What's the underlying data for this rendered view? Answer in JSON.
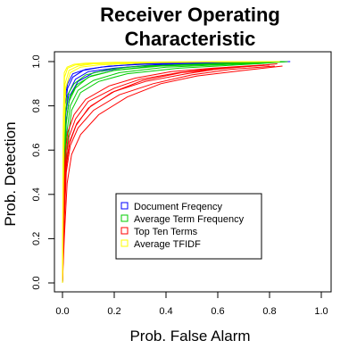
{
  "chart_data": {
    "type": "line",
    "title_lines": [
      "Receiver Operating",
      "Characteristic"
    ],
    "xlabel": "Prob. False Alarm",
    "ylabel": "Prob. Detection",
    "xlim": [
      0,
      1
    ],
    "ylim": [
      0,
      1
    ],
    "x_ticks": [
      0.0,
      0.2,
      0.4,
      0.6,
      0.8,
      1.0
    ],
    "x_tick_labels": [
      "0.0",
      "0.2",
      "0.4",
      "0.6",
      "0.8",
      "1.0"
    ],
    "y_ticks": [
      0.0,
      0.2,
      0.4,
      0.6,
      0.8,
      1.0
    ],
    "y_tick_labels": [
      "0.0",
      "0.2",
      "0.4",
      "0.6",
      "0.8",
      "1.0"
    ],
    "grid": false,
    "legend_position": "center",
    "series": [
      {
        "name": "Document Freqency",
        "color": "#0000ff",
        "lines": [
          [
            [
              0,
              0
            ],
            [
              0.005,
              0.55
            ],
            [
              0.01,
              0.8
            ],
            [
              0.02,
              0.88
            ],
            [
              0.04,
              0.93
            ],
            [
              0.08,
              0.96
            ],
            [
              0.15,
              0.975
            ],
            [
              0.3,
              0.99
            ],
            [
              0.5,
              0.995
            ],
            [
              0.85,
              1.0
            ]
          ],
          [
            [
              0,
              0
            ],
            [
              0.006,
              0.5
            ],
            [
              0.012,
              0.76
            ],
            [
              0.025,
              0.86
            ],
            [
              0.05,
              0.92
            ],
            [
              0.1,
              0.955
            ],
            [
              0.2,
              0.97
            ],
            [
              0.4,
              0.99
            ],
            [
              0.7,
              0.995
            ],
            [
              0.88,
              1.0
            ]
          ],
          [
            [
              0,
              0
            ],
            [
              0.004,
              0.6
            ],
            [
              0.01,
              0.84
            ],
            [
              0.02,
              0.9
            ],
            [
              0.04,
              0.945
            ],
            [
              0.09,
              0.965
            ],
            [
              0.18,
              0.98
            ],
            [
              0.35,
              0.99
            ],
            [
              0.6,
              0.997
            ],
            [
              0.84,
              1.0
            ]
          ],
          [
            [
              0,
              0
            ],
            [
              0.007,
              0.45
            ],
            [
              0.015,
              0.74
            ],
            [
              0.03,
              0.85
            ],
            [
              0.06,
              0.91
            ],
            [
              0.12,
              0.95
            ],
            [
              0.25,
              0.975
            ],
            [
              0.45,
              0.99
            ],
            [
              0.86,
              1.0
            ]
          ]
        ]
      },
      {
        "name": "Average Term Frequency",
        "color": "#00cc00",
        "lines": [
          [
            [
              0,
              0
            ],
            [
              0.005,
              0.4
            ],
            [
              0.012,
              0.7
            ],
            [
              0.025,
              0.82
            ],
            [
              0.05,
              0.88
            ],
            [
              0.1,
              0.93
            ],
            [
              0.2,
              0.96
            ],
            [
              0.35,
              0.98
            ],
            [
              0.6,
              0.99
            ],
            [
              0.85,
              1.0
            ]
          ],
          [
            [
              0,
              0
            ],
            [
              0.006,
              0.35
            ],
            [
              0.015,
              0.66
            ],
            [
              0.03,
              0.8
            ],
            [
              0.06,
              0.87
            ],
            [
              0.12,
              0.915
            ],
            [
              0.22,
              0.95
            ],
            [
              0.4,
              0.975
            ],
            [
              0.7,
              0.99
            ],
            [
              0.86,
              1.0
            ]
          ],
          [
            [
              0,
              0
            ],
            [
              0.004,
              0.5
            ],
            [
              0.01,
              0.75
            ],
            [
              0.02,
              0.85
            ],
            [
              0.045,
              0.9
            ],
            [
              0.09,
              0.94
            ],
            [
              0.18,
              0.965
            ],
            [
              0.3,
              0.98
            ],
            [
              0.55,
              0.99
            ],
            [
              0.82,
              1.0
            ]
          ],
          [
            [
              0,
              0
            ],
            [
              0.007,
              0.3
            ],
            [
              0.018,
              0.62
            ],
            [
              0.035,
              0.78
            ],
            [
              0.07,
              0.86
            ],
            [
              0.14,
              0.91
            ],
            [
              0.25,
              0.945
            ],
            [
              0.45,
              0.97
            ],
            [
              0.75,
              0.99
            ],
            [
              0.87,
              1.0
            ]
          ],
          [
            [
              0,
              0
            ],
            [
              0.005,
              0.45
            ],
            [
              0.013,
              0.72
            ],
            [
              0.028,
              0.84
            ],
            [
              0.055,
              0.895
            ],
            [
              0.11,
              0.935
            ],
            [
              0.2,
              0.96
            ],
            [
              0.38,
              0.98
            ],
            [
              0.8,
              0.995
            ]
          ]
        ]
      },
      {
        "name": "Top Ten Terms",
        "color": "#ff0000",
        "lines": [
          [
            [
              0,
              0
            ],
            [
              0.005,
              0.3
            ],
            [
              0.012,
              0.55
            ],
            [
              0.025,
              0.66
            ],
            [
              0.05,
              0.74
            ],
            [
              0.1,
              0.82
            ],
            [
              0.2,
              0.88
            ],
            [
              0.3,
              0.92
            ],
            [
              0.45,
              0.95
            ],
            [
              0.6,
              0.97
            ],
            [
              0.8,
              0.985
            ]
          ],
          [
            [
              0,
              0
            ],
            [
              0.006,
              0.25
            ],
            [
              0.015,
              0.5
            ],
            [
              0.03,
              0.62
            ],
            [
              0.06,
              0.7
            ],
            [
              0.12,
              0.78
            ],
            [
              0.22,
              0.85
            ],
            [
              0.35,
              0.9
            ],
            [
              0.5,
              0.94
            ],
            [
              0.65,
              0.965
            ],
            [
              0.82,
              0.98
            ]
          ],
          [
            [
              0,
              0
            ],
            [
              0.004,
              0.35
            ],
            [
              0.01,
              0.58
            ],
            [
              0.02,
              0.68
            ],
            [
              0.045,
              0.76
            ],
            [
              0.09,
              0.83
            ],
            [
              0.18,
              0.89
            ],
            [
              0.28,
              0.925
            ],
            [
              0.42,
              0.955
            ],
            [
              0.58,
              0.97
            ],
            [
              0.78,
              0.985
            ]
          ],
          [
            [
              0,
              0
            ],
            [
              0.007,
              0.2
            ],
            [
              0.018,
              0.45
            ],
            [
              0.035,
              0.58
            ],
            [
              0.07,
              0.67
            ],
            [
              0.14,
              0.76
            ],
            [
              0.25,
              0.84
            ],
            [
              0.38,
              0.9
            ],
            [
              0.52,
              0.935
            ],
            [
              0.7,
              0.96
            ],
            [
              0.85,
              0.98
            ]
          ],
          [
            [
              0,
              0
            ],
            [
              0.005,
              0.32
            ],
            [
              0.013,
              0.53
            ],
            [
              0.028,
              0.64
            ],
            [
              0.055,
              0.72
            ],
            [
              0.11,
              0.8
            ],
            [
              0.2,
              0.865
            ],
            [
              0.32,
              0.91
            ],
            [
              0.48,
              0.945
            ],
            [
              0.62,
              0.97
            ],
            [
              0.8,
              0.985
            ]
          ],
          [
            [
              0,
              0
            ],
            [
              0.006,
              0.28
            ],
            [
              0.014,
              0.52
            ],
            [
              0.027,
              0.63
            ],
            [
              0.052,
              0.71
            ],
            [
              0.1,
              0.79
            ],
            [
              0.19,
              0.86
            ],
            [
              0.31,
              0.915
            ],
            [
              0.46,
              0.95
            ],
            [
              0.64,
              0.97
            ],
            [
              0.83,
              0.99
            ]
          ]
        ]
      },
      {
        "name": "Average TFIDF",
        "color": "#ffff00",
        "lines": [
          [
            [
              0,
              0
            ],
            [
              0.003,
              0.7
            ],
            [
              0.008,
              0.93
            ],
            [
              0.02,
              0.97
            ],
            [
              0.05,
              0.985
            ],
            [
              0.1,
              0.99
            ],
            [
              0.25,
              0.995
            ],
            [
              0.5,
              0.998
            ],
            [
              0.8,
              1.0
            ]
          ],
          [
            [
              0,
              0
            ],
            [
              0.004,
              0.65
            ],
            [
              0.01,
              0.9
            ],
            [
              0.025,
              0.96
            ],
            [
              0.06,
              0.98
            ],
            [
              0.12,
              0.99
            ],
            [
              0.3,
              0.996
            ],
            [
              0.6,
              0.999
            ],
            [
              0.82,
              1.0
            ]
          ],
          [
            [
              0,
              0
            ],
            [
              0.003,
              0.75
            ],
            [
              0.007,
              0.95
            ],
            [
              0.018,
              0.975
            ],
            [
              0.045,
              0.988
            ],
            [
              0.09,
              0.993
            ],
            [
              0.2,
              0.997
            ],
            [
              0.45,
              0.999
            ],
            [
              0.78,
              1.0
            ]
          ],
          [
            [
              0,
              0
            ],
            [
              0.005,
              0.6
            ],
            [
              0.012,
              0.88
            ],
            [
              0.03,
              0.95
            ],
            [
              0.07,
              0.975
            ],
            [
              0.14,
              0.985
            ],
            [
              0.35,
              0.995
            ],
            [
              0.65,
              0.999
            ],
            [
              0.84,
              1.0
            ]
          ]
        ]
      }
    ]
  }
}
